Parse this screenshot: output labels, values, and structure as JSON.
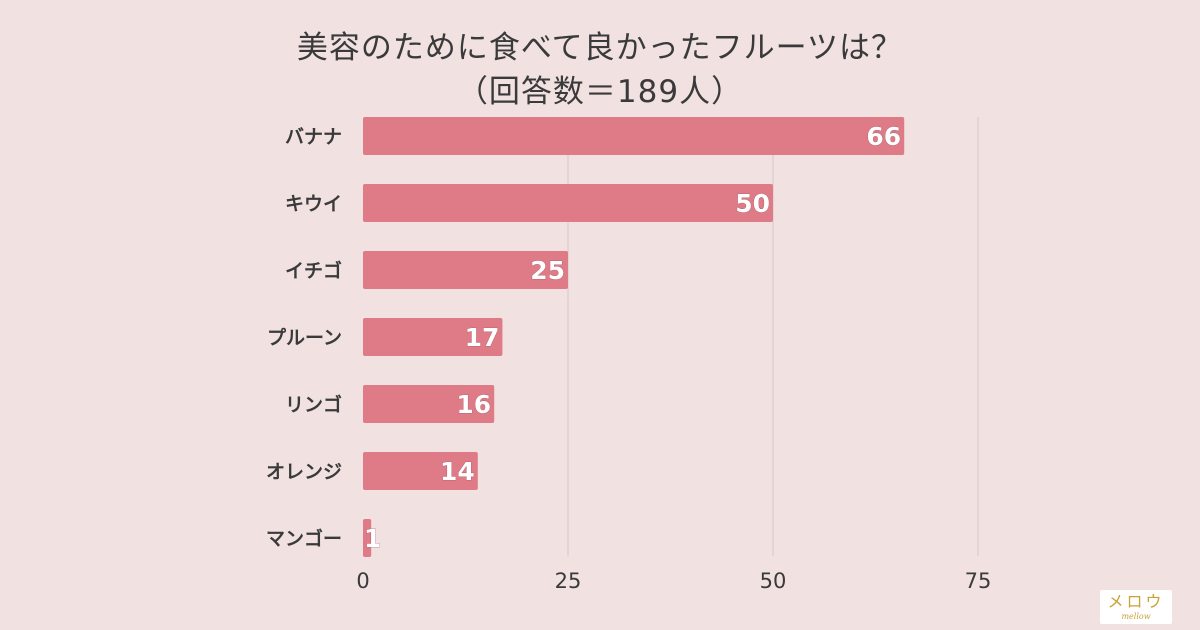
{
  "title_lines": [
    "美容のために食べて良かったフルーツは？",
    "（回答数＝189人）"
  ],
  "logo": {
    "main": "メロウ",
    "sub": "mellow"
  },
  "colors": {
    "background": "#f1e1e1",
    "bar": "#de7b86",
    "grid": "#d9c7c7",
    "label": "#3a3a3a",
    "value_label": "#ffffff"
  },
  "chart_data": {
    "type": "bar",
    "orientation": "horizontal",
    "title": "美容のために食べて良かったフルーツは？（回答数＝189人）",
    "categories": [
      "バナナ",
      "キウイ",
      "イチゴ",
      "プルーン",
      "リンゴ",
      "オレンジ",
      "マンゴー"
    ],
    "values": [
      66,
      50,
      25,
      17,
      16,
      14,
      1
    ],
    "xlim": [
      0,
      100
    ],
    "xticks": [
      0,
      25,
      50,
      75
    ],
    "xtick_labels": [
      "0",
      "25",
      "50",
      "75"
    ],
    "xlabel": "",
    "ylabel": "",
    "grid": true,
    "legend": "none",
    "data_labels": true
  }
}
